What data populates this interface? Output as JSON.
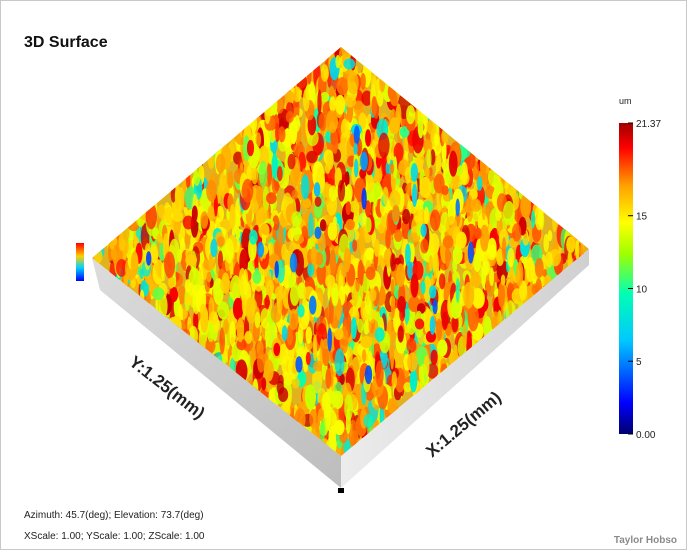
{
  "chart_data": {
    "type": "surface-3d",
    "title": "3D Surface",
    "xlabel": "X:1.25(mm)",
    "ylabel": "Y:1.25(mm)",
    "x_extent_mm": 1.25,
    "y_extent_mm": 1.25,
    "colorbar": {
      "unit": "um",
      "min": 0.0,
      "max": 21.37,
      "ticks": [
        {
          "value": 0.0,
          "label": "0.00"
        },
        {
          "value": 5,
          "label": "5"
        },
        {
          "value": 10,
          "label": "10"
        },
        {
          "value": 15,
          "label": "15"
        },
        {
          "value": 21.37,
          "label": "21.37"
        }
      ],
      "colormap": [
        "#00006e",
        "#0000ff",
        "#00c8ff",
        "#00ffb4",
        "#a0ff00",
        "#ffff00",
        "#ffa000",
        "#ff0000",
        "#a00000"
      ]
    },
    "view": {
      "azimuth_deg": 45.7,
      "elevation_deg": 73.7
    },
    "scale": {
      "x": 1.0,
      "y": 1.0,
      "z": 1.0
    },
    "legend_position": "right"
  },
  "text": {
    "title": "3D Surface",
    "cb_unit": "um",
    "footer_view": "Azimuth: 45.7(deg); Elevation: 73.7(deg)",
    "footer_scale": "XScale: 1.00; YScale: 1.00; ZScale: 1.00",
    "brand": "Taylor Hobso"
  }
}
